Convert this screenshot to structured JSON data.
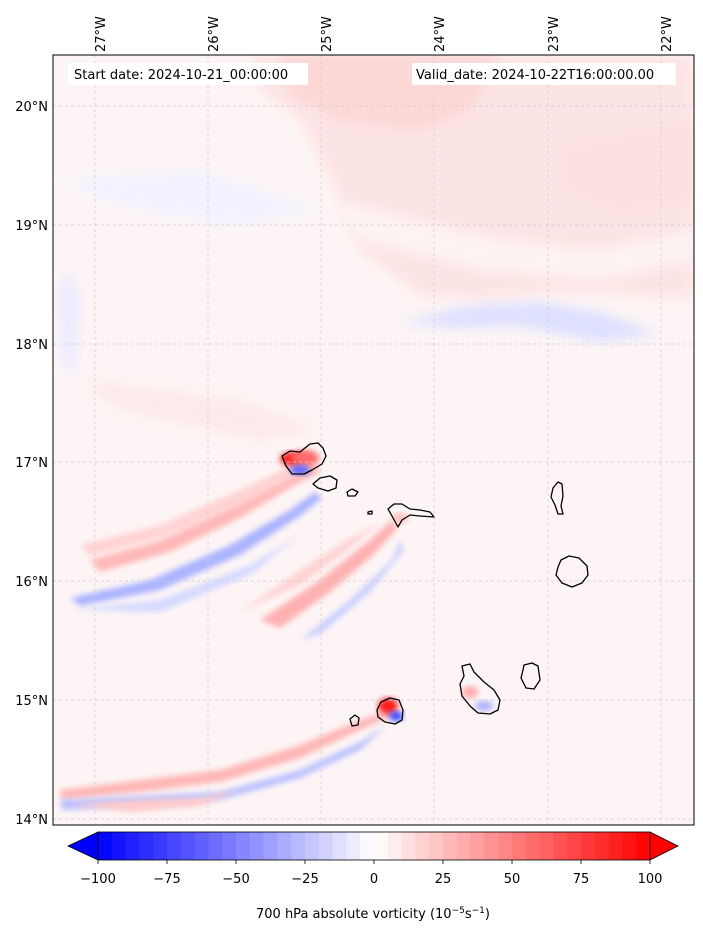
{
  "map": {
    "start_date_label": "Start date: 2024-10-21_00:00:00",
    "valid_date_label": "Valid_date: 2024-10-22T16:00:00.00",
    "longitude_labels": [
      "27°W",
      "26°W",
      "25°W",
      "24°W",
      "23°W",
      "22°W"
    ],
    "latitude_labels": [
      "20°N",
      "19°N",
      "18°N",
      "17°N",
      "16°N",
      "15°N",
      "14°N"
    ],
    "extent": {
      "lon_min": -27.3,
      "lon_max": -21.77,
      "lat_min": 13.95,
      "lat_max": 20.42
    },
    "islands": [
      "Santo Antão",
      "São Vicente",
      "Santa Luzia",
      "Branco",
      "Raso",
      "São Nicolau",
      "Sal",
      "Boa Vista",
      "Maio",
      "Santiago",
      "Fogo",
      "Brava"
    ],
    "colors": {
      "positive": "#ff0000",
      "negative": "#0000ff",
      "coastline": "#000000",
      "background": "#fdf5f5"
    }
  },
  "colorbar": {
    "ticks": [
      "−100",
      "−75",
      "−50",
      "−25",
      "0",
      "25",
      "50",
      "75",
      "100"
    ],
    "label_main": "700 hPa absolute vorticity (10",
    "label_exp1": "−5",
    "label_mid": "s",
    "label_exp2": "−1",
    "label_end": ")",
    "vmin": -100,
    "vmax": 100,
    "cmap": "bwr"
  }
}
